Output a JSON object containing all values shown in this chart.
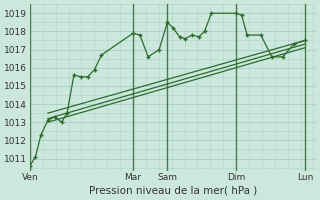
{
  "xlabel": "Pression niveau de la mer( hPa )",
  "bg_color": "#cce8dd",
  "grid_color": "#aad4cc",
  "line_color": "#2d6b2d",
  "sep_color": "#4a7a4a",
  "ylim": [
    1010.3,
    1019.5
  ],
  "yticks": [
    1011,
    1012,
    1013,
    1014,
    1015,
    1016,
    1017,
    1018,
    1019
  ],
  "day_labels": [
    "Ven",
    "Mar",
    "Sam",
    "Dim",
    "Lun"
  ],
  "day_positions": [
    0.0,
    0.375,
    0.5,
    0.75,
    1.0
  ],
  "xlim": [
    0,
    1.04
  ],
  "series1_x": [
    0.0,
    0.02,
    0.04,
    0.065,
    0.09,
    0.115,
    0.135,
    0.16,
    0.185,
    0.21,
    0.235,
    0.26,
    0.375,
    0.4,
    0.43,
    0.47,
    0.5,
    0.52,
    0.545,
    0.565,
    0.59,
    0.615,
    0.635,
    0.66,
    0.75,
    0.77,
    0.79,
    0.84,
    0.88,
    0.92,
    0.96,
    1.0
  ],
  "series1_y": [
    1010.6,
    1011.1,
    1012.3,
    1013.1,
    1013.3,
    1013.0,
    1013.5,
    1015.6,
    1015.5,
    1015.5,
    1015.9,
    1016.7,
    1017.9,
    1017.8,
    1016.6,
    1017.0,
    1018.5,
    1018.2,
    1017.7,
    1017.6,
    1017.8,
    1017.7,
    1018.0,
    1019.0,
    1019.0,
    1018.9,
    1017.8,
    1017.8,
    1016.6,
    1016.6,
    1017.3,
    1017.5
  ],
  "series2_x": [
    0.065,
    1.0
  ],
  "series2_y": [
    1013.0,
    1017.1
  ],
  "series3_x": [
    0.065,
    1.0
  ],
  "series3_y": [
    1013.2,
    1017.3
  ],
  "series4_x": [
    0.065,
    1.0
  ],
  "series4_y": [
    1013.5,
    1017.5
  ]
}
